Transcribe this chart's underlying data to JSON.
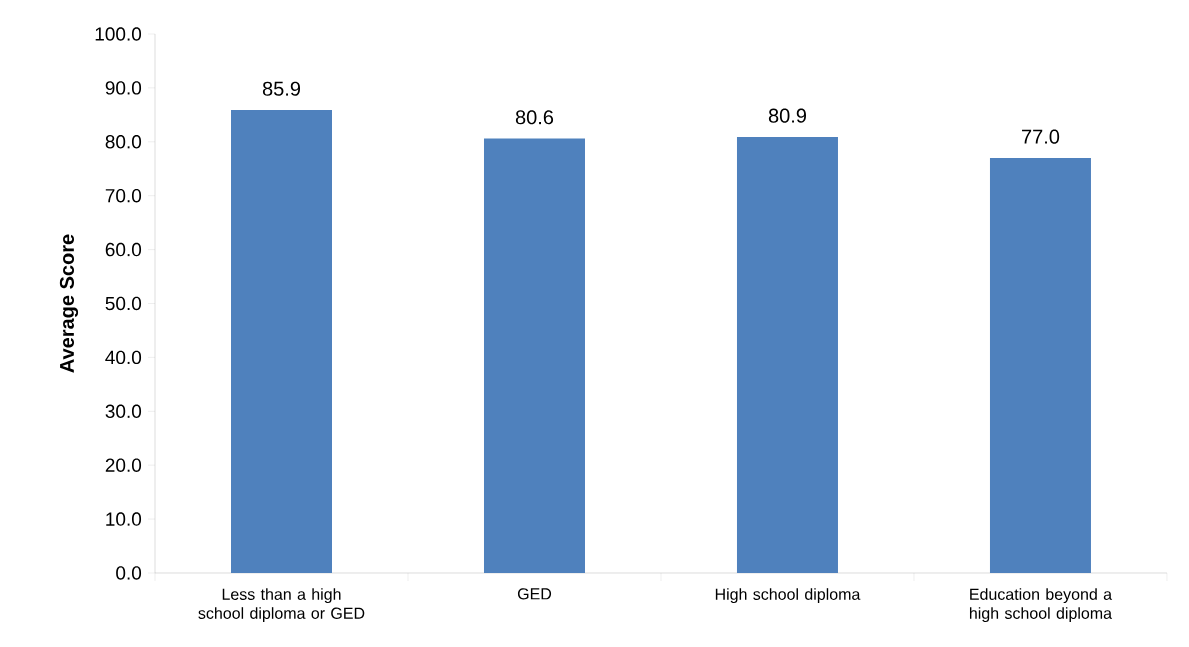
{
  "chart_data": {
    "type": "bar",
    "ylabel": "Average Score",
    "categories": [
      "Less than a high school diploma or GED",
      "GED",
      "High school diploma",
      "Education beyond a high school diploma"
    ],
    "values": [
      85.9,
      80.6,
      80.9,
      77.0
    ],
    "value_labels": [
      "85.9",
      "80.6",
      "80.9",
      "77.0"
    ],
    "color": "#4f81bd",
    "ylim": [
      0,
      100
    ],
    "yticks": [
      {
        "value": 0,
        "label": "0.0"
      },
      {
        "value": 10,
        "label": "10.0"
      },
      {
        "value": 20,
        "label": "20.0"
      },
      {
        "value": 30,
        "label": "30.0"
      },
      {
        "value": 40,
        "label": "40.0"
      },
      {
        "value": 50,
        "label": "50.0"
      },
      {
        "value": 60,
        "label": "60.0"
      },
      {
        "value": 70,
        "label": "70.0"
      },
      {
        "value": 80,
        "label": "80.0"
      },
      {
        "value": 90,
        "label": "90.0"
      },
      {
        "value": 100,
        "label": "100.0"
      }
    ],
    "grid": false
  }
}
